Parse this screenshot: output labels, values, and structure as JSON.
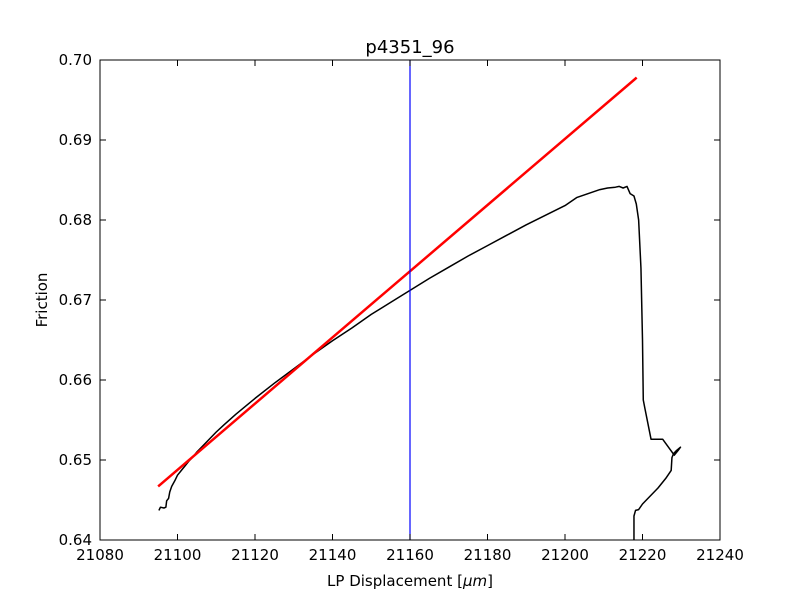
{
  "chart_data": {
    "type": "line",
    "title": "p4351_96",
    "xlabel": "LP Displacement [",
    "xlabel_math": "μm",
    "xlabel_suffix": "]",
    "ylabel": "Friction",
    "xlim": [
      21080,
      21240
    ],
    "ylim": [
      0.64,
      0.7
    ],
    "xticks": [
      21080,
      21100,
      21120,
      21140,
      21160,
      21180,
      21200,
      21220,
      21240
    ],
    "yticks": [
      0.64,
      0.65,
      0.66,
      0.67,
      0.68,
      0.69,
      0.7
    ],
    "xtick_labels": [
      "21080",
      "21100",
      "21120",
      "21140",
      "21160",
      "21180",
      "21200",
      "21220",
      "21240"
    ],
    "ytick_labels": [
      "0.64",
      "0.65",
      "0.66",
      "0.67",
      "0.68",
      "0.69",
      "0.70"
    ],
    "grid": false,
    "series": [
      {
        "kind": "data",
        "color": "#000000",
        "points": [
          [
            21095.2,
            0.6437
          ],
          [
            21095.6,
            0.6441
          ],
          [
            21096.5,
            0.644
          ],
          [
            21097.0,
            0.6441
          ],
          [
            21097.2,
            0.6449
          ],
          [
            21097.7,
            0.6452
          ],
          [
            21098.0,
            0.646
          ],
          [
            21098.5,
            0.6467
          ],
          [
            21099.3,
            0.6474
          ],
          [
            21100.0,
            0.6481
          ],
          [
            21101.0,
            0.6487
          ],
          [
            21102.0,
            0.6493
          ],
          [
            21103.0,
            0.6499
          ],
          [
            21104.0,
            0.6504
          ],
          [
            21105.0,
            0.651
          ],
          [
            21106.0,
            0.6515
          ],
          [
            21108.0,
            0.6525
          ],
          [
            21110.0,
            0.6535
          ],
          [
            21112.0,
            0.6544
          ],
          [
            21115.0,
            0.6557
          ],
          [
            21118.0,
            0.6569
          ],
          [
            21120.0,
            0.6577
          ],
          [
            21125.0,
            0.6596
          ],
          [
            21130.0,
            0.6614
          ],
          [
            21135.0,
            0.6632
          ],
          [
            21140.0,
            0.6649
          ],
          [
            21145.0,
            0.6665
          ],
          [
            21150.0,
            0.6682
          ],
          [
            21155.0,
            0.6697
          ],
          [
            21160.0,
            0.6712
          ],
          [
            21165.0,
            0.6727
          ],
          [
            21170.0,
            0.6741
          ],
          [
            21175.0,
            0.6755
          ],
          [
            21180.0,
            0.6768
          ],
          [
            21185.0,
            0.6781
          ],
          [
            21190.0,
            0.6794
          ],
          [
            21195.0,
            0.6806
          ],
          [
            21200.0,
            0.6818
          ],
          [
            21203.0,
            0.6828
          ],
          [
            21206.0,
            0.6833
          ],
          [
            21209.0,
            0.6838
          ],
          [
            21211.0,
            0.684
          ],
          [
            21213.0,
            0.6841
          ],
          [
            21214.0,
            0.6842
          ],
          [
            21215.0,
            0.684
          ],
          [
            21216.0,
            0.6842
          ],
          [
            21216.8,
            0.6833
          ],
          [
            21217.8,
            0.683
          ],
          [
            21218.4,
            0.682
          ],
          [
            21219.0,
            0.68
          ],
          [
            21219.6,
            0.674
          ],
          [
            21220.0,
            0.665
          ],
          [
            21220.2,
            0.6575
          ],
          [
            21220.6,
            0.6565
          ],
          [
            21222.2,
            0.6526
          ],
          [
            21225.2,
            0.6526
          ],
          [
            21228.2,
            0.6506
          ],
          [
            21229.2,
            0.6512
          ],
          [
            21229.8,
            0.6516
          ],
          [
            21228.8,
            0.6512
          ],
          [
            21228.0,
            0.6508
          ],
          [
            21227.6,
            0.6503
          ],
          [
            21227.4,
            0.6487
          ],
          [
            21226.0,
            0.6477
          ],
          [
            21224.0,
            0.6465
          ],
          [
            21222.0,
            0.6455
          ],
          [
            21220.0,
            0.6445
          ],
          [
            21219.0,
            0.6438
          ],
          [
            21218.2,
            0.6437
          ],
          [
            21217.8,
            0.643
          ],
          [
            21217.8,
            0.6397
          ],
          [
            21217.8,
            0.6404
          ]
        ]
      },
      {
        "kind": "fit",
        "color": "#ff0000",
        "points": [
          [
            21095.0,
            0.6467
          ],
          [
            21218.5,
            0.6978
          ]
        ]
      }
    ],
    "vertical_line": {
      "x": 21160,
      "color": "#0000ff"
    }
  }
}
